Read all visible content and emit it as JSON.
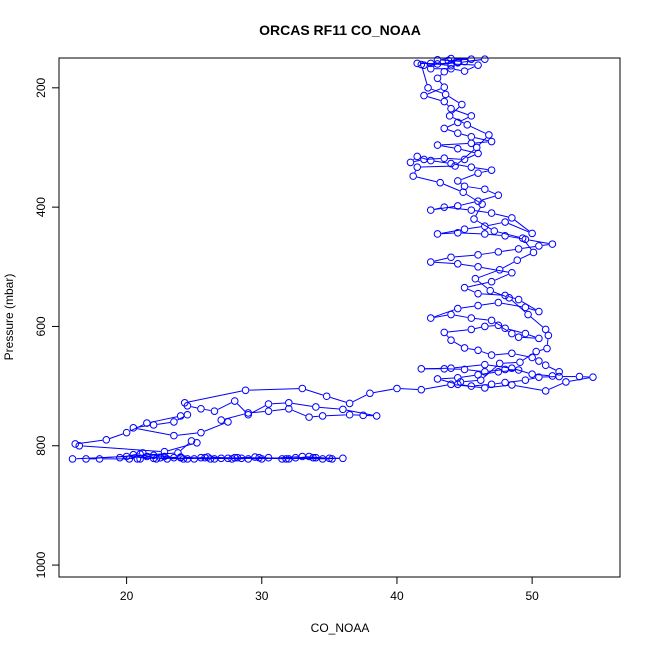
{
  "chart_data": {
    "type": "line",
    "title": "ORCAS RF11 CO_NOAA",
    "xlabel": "CO_NOAA",
    "ylabel": "Pressure (mbar)",
    "xlim": [
      15,
      56.5
    ],
    "ylim": [
      1020,
      150
    ],
    "y_reversed": true,
    "x_ticks": [
      20,
      30,
      40,
      50
    ],
    "y_ticks": [
      200,
      400,
      600,
      800,
      1000
    ],
    "grid": false,
    "legend": "none",
    "marker": "open-circle",
    "color": "#0000ff",
    "series": [
      {
        "points": [
          [
            16.0,
            822
          ],
          [
            20.0,
            818
          ],
          [
            22.0,
            821
          ],
          [
            24.0,
            819
          ],
          [
            26.5,
            822
          ],
          [
            28.0,
            820
          ],
          [
            30.0,
            822
          ],
          [
            33.0,
            818
          ],
          [
            35.0,
            821
          ],
          [
            34.0,
            820
          ],
          [
            31.5,
            822
          ],
          [
            29.5,
            819
          ],
          [
            27.5,
            821
          ],
          [
            25.5,
            820
          ],
          [
            23.0,
            822
          ],
          [
            21.5,
            818
          ],
          [
            20.5,
            815
          ],
          [
            21.0,
            822
          ],
          [
            22.5,
            820
          ],
          [
            24.5,
            822
          ],
          [
            26.0,
            819
          ],
          [
            28.5,
            821
          ],
          [
            30.5,
            820
          ],
          [
            32.0,
            822
          ],
          [
            33.5,
            818
          ],
          [
            34.5,
            822
          ],
          [
            36.0,
            821
          ],
          [
            32.5,
            820
          ],
          [
            29.0,
            822
          ],
          [
            27.0,
            821
          ],
          [
            25.0,
            822
          ],
          [
            23.5,
            820
          ],
          [
            22.0,
            816
          ],
          [
            20.8,
            822
          ],
          [
            19.5,
            820
          ],
          [
            21.2,
            812
          ],
          [
            22.8,
            818
          ],
          [
            24.2,
            822
          ],
          [
            25.8,
            820
          ],
          [
            27.8,
            822
          ],
          [
            29.8,
            820
          ],
          [
            31.8,
            822
          ],
          [
            33.8,
            820
          ],
          [
            35.2,
            822
          ],
          [
            28.2,
            820
          ],
          [
            26.2,
            822
          ],
          [
            24.0,
            820
          ],
          [
            22.2,
            822
          ],
          [
            21.0,
            814
          ],
          [
            20.2,
            822
          ],
          [
            18.0,
            822
          ],
          [
            17.0,
            822
          ],
          [
            23.8,
            812
          ],
          [
            24.8,
            792
          ],
          [
            25.2,
            795
          ],
          [
            22.8,
            810
          ],
          [
            16.5,
            800
          ],
          [
            16.2,
            797
          ],
          [
            18.5,
            790
          ],
          [
            20.0,
            778
          ],
          [
            21.5,
            762
          ],
          [
            24.0,
            750
          ],
          [
            24.5,
            748
          ],
          [
            23.5,
            760
          ],
          [
            22.0,
            765
          ],
          [
            20.5,
            770
          ],
          [
            23.5,
            783
          ],
          [
            25.5,
            778
          ],
          [
            27.5,
            760
          ],
          [
            27.0,
            757
          ],
          [
            29.0,
            745
          ],
          [
            30.5,
            742
          ],
          [
            32.0,
            738
          ],
          [
            33.5,
            752
          ],
          [
            34.5,
            750
          ],
          [
            36.5,
            748
          ],
          [
            37.5,
            749
          ],
          [
            38.5,
            750
          ],
          [
            36.0,
            739
          ],
          [
            34.0,
            735
          ],
          [
            32.0,
            728
          ],
          [
            30.5,
            730
          ],
          [
            29.0,
            748
          ],
          [
            28.0,
            725
          ],
          [
            26.5,
            742
          ],
          [
            25.5,
            738
          ],
          [
            24.5,
            733
          ],
          [
            24.3,
            728
          ],
          [
            28.8,
            707
          ],
          [
            33.0,
            704
          ],
          [
            34.8,
            717
          ],
          [
            36.5,
            729
          ],
          [
            38.0,
            712
          ],
          [
            40.0,
            704
          ],
          [
            41.8,
            706
          ],
          [
            44.0,
            697
          ],
          [
            46.5,
            703
          ],
          [
            48.5,
            698
          ],
          [
            51.0,
            708
          ],
          [
            52.5,
            693
          ],
          [
            54.5,
            685
          ],
          [
            53.5,
            684
          ],
          [
            52.0,
            684
          ],
          [
            50.5,
            685
          ],
          [
            49.5,
            690
          ],
          [
            48.0,
            694
          ],
          [
            47.0,
            697
          ],
          [
            45.5,
            700
          ],
          [
            44.5,
            697
          ],
          [
            43.0,
            688
          ],
          [
            44.5,
            686
          ],
          [
            46.0,
            681
          ],
          [
            47.5,
            676
          ],
          [
            49.0,
            673
          ],
          [
            48.0,
            672
          ],
          [
            46.5,
            676
          ],
          [
            45.0,
            672
          ],
          [
            43.5,
            671
          ],
          [
            41.8,
            671
          ],
          [
            44.0,
            670
          ],
          [
            46.5,
            664
          ],
          [
            48.5,
            670
          ],
          [
            50.0,
            680
          ],
          [
            51.5,
            683
          ],
          [
            52.0,
            676
          ],
          [
            51.0,
            665
          ],
          [
            50.5,
            658
          ],
          [
            50.0,
            652
          ],
          [
            48.5,
            645
          ],
          [
            47.0,
            648
          ],
          [
            46.0,
            640
          ],
          [
            45.0,
            636
          ],
          [
            44.0,
            623
          ],
          [
            43.5,
            610
          ],
          [
            45.5,
            605
          ],
          [
            46.5,
            600
          ],
          [
            47.5,
            598
          ],
          [
            48.5,
            612
          ],
          [
            49.0,
            618
          ],
          [
            50.5,
            620
          ],
          [
            49.5,
            612
          ],
          [
            48.0,
            603
          ],
          [
            47.0,
            590
          ],
          [
            45.5,
            586
          ],
          [
            44.0,
            580
          ],
          [
            42.5,
            586
          ],
          [
            44.5,
            570
          ],
          [
            46.0,
            565
          ],
          [
            47.5,
            560
          ],
          [
            49.5,
            568
          ],
          [
            50.5,
            575
          ],
          [
            49.0,
            555
          ],
          [
            48.0,
            548
          ],
          [
            46.0,
            545
          ],
          [
            45.0,
            535
          ],
          [
            47.0,
            525
          ],
          [
            48.5,
            510
          ],
          [
            46.0,
            500
          ],
          [
            44.5,
            495
          ],
          [
            42.5,
            492
          ],
          [
            44.0,
            484
          ],
          [
            46.0,
            480
          ],
          [
            47.5,
            475
          ],
          [
            49.0,
            470
          ],
          [
            50.5,
            465
          ],
          [
            51.5,
            462
          ],
          [
            49.5,
            454
          ],
          [
            48.0,
            448
          ],
          [
            46.5,
            445
          ],
          [
            44.5,
            443
          ],
          [
            43.0,
            445
          ],
          [
            45.0,
            437
          ],
          [
            46.5,
            432
          ],
          [
            48.0,
            425
          ],
          [
            50.0,
            444
          ],
          [
            48.5,
            418
          ],
          [
            47.0,
            410
          ],
          [
            45.5,
            405
          ],
          [
            43.5,
            400
          ],
          [
            42.5,
            405
          ],
          [
            44.5,
            398
          ],
          [
            46.0,
            390
          ],
          [
            47.5,
            380
          ],
          [
            46.5,
            370
          ],
          [
            45.0,
            365
          ],
          [
            44.5,
            356
          ],
          [
            46.0,
            343
          ],
          [
            47.0,
            338
          ],
          [
            45.5,
            333
          ],
          [
            44.0,
            327
          ],
          [
            42.5,
            322
          ],
          [
            41.5,
            315
          ],
          [
            41.0,
            325
          ],
          [
            42.0,
            320
          ],
          [
            43.5,
            318
          ],
          [
            45.0,
            320
          ],
          [
            46.0,
            310
          ],
          [
            44.5,
            302
          ],
          [
            43.0,
            296
          ],
          [
            45.5,
            293
          ],
          [
            47.0,
            290
          ],
          [
            45.5,
            282
          ],
          [
            44.5,
            276
          ],
          [
            43.5,
            268
          ],
          [
            44.5,
            258
          ],
          [
            45.5,
            247
          ],
          [
            44.0,
            235
          ],
          [
            43.5,
            223
          ],
          [
            42.0,
            213
          ],
          [
            43.5,
            199
          ],
          [
            43.0,
            184
          ],
          [
            43.5,
            173
          ],
          [
            44.0,
            163
          ],
          [
            42.5,
            159
          ],
          [
            41.5,
            159
          ],
          [
            44.0,
            160
          ],
          [
            46.0,
            162
          ],
          [
            45.0,
            172
          ],
          [
            44.0,
            168
          ],
          [
            42.5,
            168
          ],
          [
            43.0,
            160
          ],
          [
            44.5,
            157
          ],
          [
            43.8,
            154
          ],
          [
            45.5,
            152
          ],
          [
            44.0,
            151
          ],
          [
            43.0,
            153
          ],
          [
            45.0,
            156
          ],
          [
            46.5,
            152
          ],
          [
            44.5,
            158
          ],
          [
            42.0,
            162
          ],
          [
            41.8,
            161
          ],
          [
            42.3,
            200
          ],
          [
            43.6,
            211
          ],
          [
            44.8,
            228
          ],
          [
            43.9,
            247
          ],
          [
            45.2,
            262
          ],
          [
            46.8,
            279
          ],
          [
            45.9,
            300
          ],
          [
            44.3,
            331
          ],
          [
            41.5,
            333
          ],
          [
            41.2,
            348
          ],
          [
            43.2,
            359
          ],
          [
            44.9,
            375
          ],
          [
            46.3,
            395
          ],
          [
            45.7,
            420
          ],
          [
            47.2,
            440
          ],
          [
            49.3,
            452
          ],
          [
            50.1,
            476
          ],
          [
            48.9,
            489
          ],
          [
            47.6,
            505
          ],
          [
            45.8,
            520
          ],
          [
            46.9,
            540
          ],
          [
            48.3,
            552
          ],
          [
            49.7,
            580
          ],
          [
            51.0,
            605
          ],
          [
            51.2,
            615
          ],
          [
            51.1,
            637
          ],
          [
            50.3,
            642
          ],
          [
            49.1,
            660
          ],
          [
            47.6,
            662
          ],
          [
            46.2,
            690
          ],
          [
            44.7,
            693
          ]
        ]
      }
    ]
  }
}
